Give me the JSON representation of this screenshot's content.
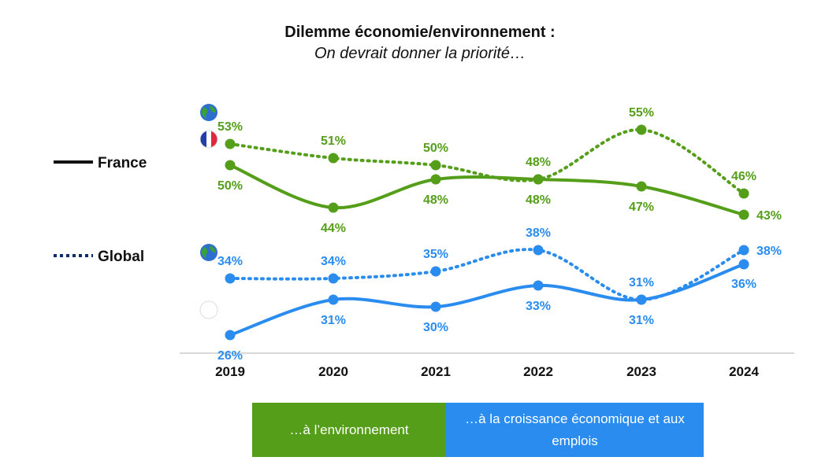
{
  "title": "Dilemme économie/environnement :",
  "subtitle": "On devrait donner la priorité…",
  "colors": {
    "environment": "#559E1A",
    "economy": "#2B8CEF",
    "axis": "#cccccc",
    "text": "#111111"
  },
  "line_legend": {
    "solid_label": "France",
    "dotted_label": "Global"
  },
  "bottom_legend": {
    "environment_label": "…à l’environnement",
    "economy_label": "…à la croissance économique et aux emplois"
  },
  "chart_data": {
    "type": "line",
    "title": "Dilemme économie/environnement : On devrait donner la priorité…",
    "categories": [
      "2019",
      "2020",
      "2021",
      "2022",
      "2023",
      "2024"
    ],
    "ylim": [
      20,
      60
    ],
    "series": [
      {
        "name": "Environnement - Global",
        "group": "environment",
        "style": "dotted",
        "values": [
          53,
          51,
          50,
          48,
          55,
          46
        ]
      },
      {
        "name": "Environnement - France",
        "group": "environment",
        "style": "solid",
        "values": [
          50,
          44,
          48,
          48,
          47,
          43
        ]
      },
      {
        "name": "Économie - Global",
        "group": "economy",
        "style": "dotted",
        "values": [
          34,
          34,
          35,
          38,
          31,
          38
        ]
      },
      {
        "name": "Économie - France",
        "group": "economy",
        "style": "solid",
        "values": [
          26,
          31,
          30,
          33,
          31,
          36
        ]
      }
    ]
  }
}
